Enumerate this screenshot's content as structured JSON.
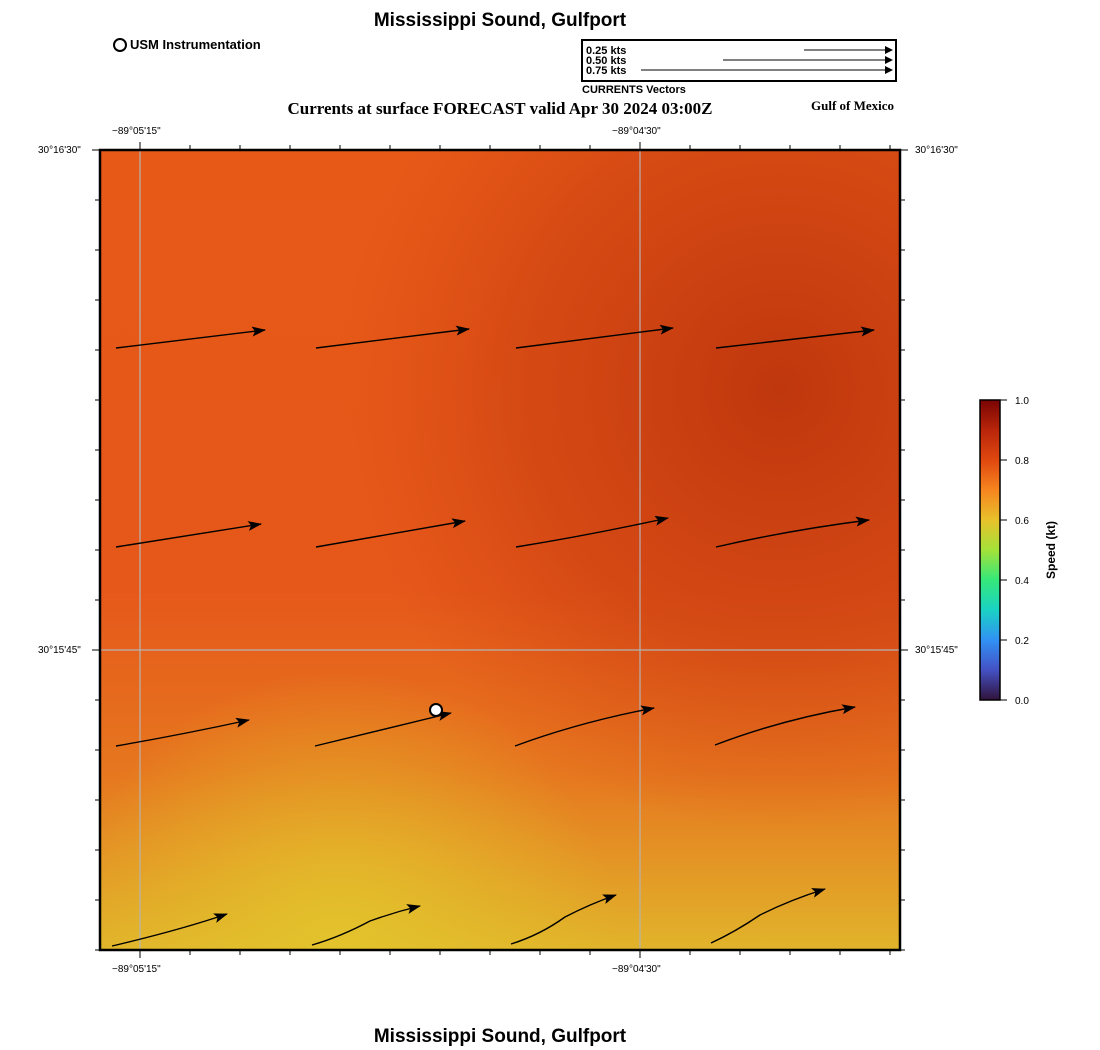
{
  "header": {
    "title": "Mississippi Sound, Gulfport",
    "subtitle": "Currents at surface FORECAST valid Apr 30 2024 03:00Z",
    "region": "Gulf of Mexico"
  },
  "footer": {
    "title": "Mississippi Sound, Gulfport"
  },
  "legend": {
    "station_label": "USM Instrumentation"
  },
  "vector_scale": {
    "caption": "CURRENTS Vectors",
    "entries": [
      "0.25 kts",
      "0.50 kts",
      "0.75 kts"
    ]
  },
  "axes": {
    "top_ticks": [
      "−89°05'15\"",
      "−89°04'30\""
    ],
    "bottom_ticks": [
      "−89°05'15\"",
      "−89°04'30\""
    ],
    "left_ticks": [
      "30°16'30\"",
      "30°15'45\""
    ],
    "right_ticks": [
      "30°16'30\"",
      "30°15'45\""
    ]
  },
  "colorbar": {
    "label": "Speed (kt)",
    "ticks": [
      "1.0",
      "0.8",
      "0.6",
      "0.4",
      "0.2",
      "0.0"
    ],
    "range": [
      0,
      1
    ]
  },
  "colors": {
    "field_orange": "#e8621a",
    "field_dark": "#c0390e",
    "field_yellow": "#e2bf2b",
    "grid": "#b4b4b4"
  }
}
